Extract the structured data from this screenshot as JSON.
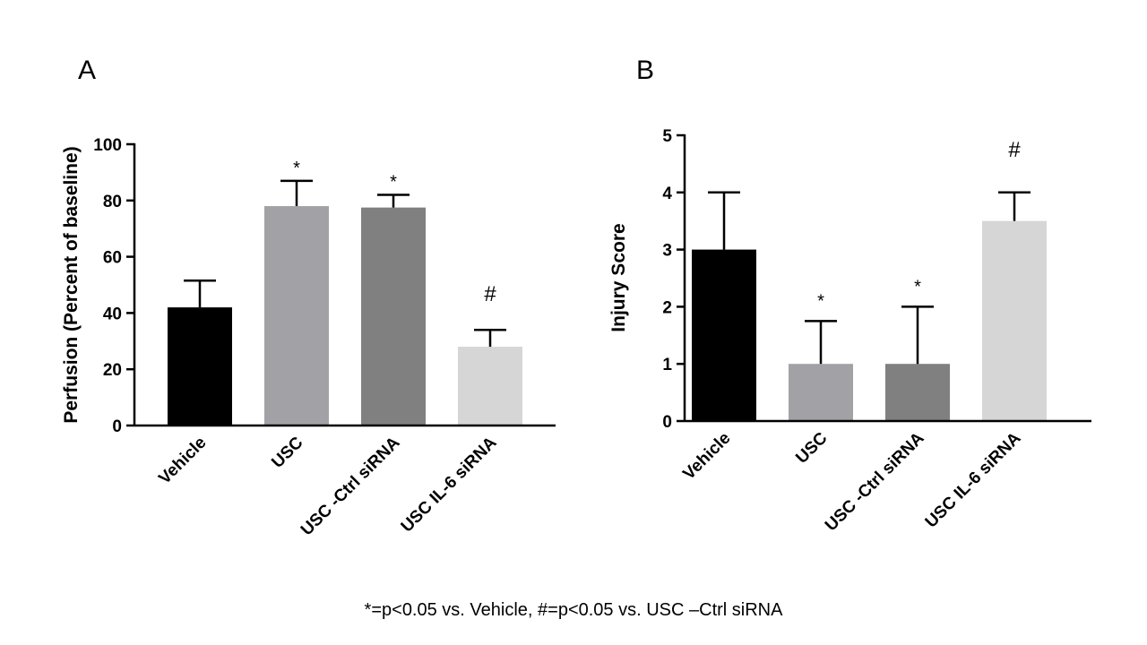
{
  "chart_data": [
    {
      "type": "bar",
      "panel_label": "A",
      "title": "",
      "xlabel": "",
      "ylabel": "Perfusion (Percent of baseline)",
      "categories": [
        "Vehicle",
        "USC",
        "USC -Ctrl siRNA",
        "USC IL-6 siRNA"
      ],
      "values": [
        42,
        78,
        77.5,
        28
      ],
      "errors": [
        9.5,
        9,
        4.5,
        6
      ],
      "colors": [
        "#000000",
        "#a2a2a6",
        "#808080",
        "#d6d6d6"
      ],
      "annotations": [
        "",
        "*",
        "*",
        "#"
      ],
      "ylim": [
        0,
        100
      ],
      "yticks": [
        "0",
        "20",
        "40",
        "60",
        "80",
        "100"
      ],
      "grid": false,
      "legend": "none"
    },
    {
      "type": "bar",
      "panel_label": "B",
      "title": "",
      "xlabel": "",
      "ylabel": "Injury  Score",
      "categories": [
        "Vehicle",
        "USC",
        "USC -Ctrl siRNA",
        "USC IL-6 siRNA"
      ],
      "values": [
        3,
        1,
        1,
        3.5
      ],
      "errors": [
        1,
        0.75,
        1,
        0.5
      ],
      "colors": [
        "#000000",
        "#a2a2a6",
        "#808080",
        "#d6d6d6"
      ],
      "annotations": [
        "",
        "*",
        "*",
        "#"
      ],
      "ylim": [
        0,
        5
      ],
      "yticks": [
        "0",
        "1",
        "2",
        "3",
        "4",
        "5"
      ],
      "grid": false,
      "legend": "none"
    }
  ],
  "footnote": "*=p<0.05 vs. Vehicle, #=p<0.05 vs. USC –Ctrl siRNA"
}
